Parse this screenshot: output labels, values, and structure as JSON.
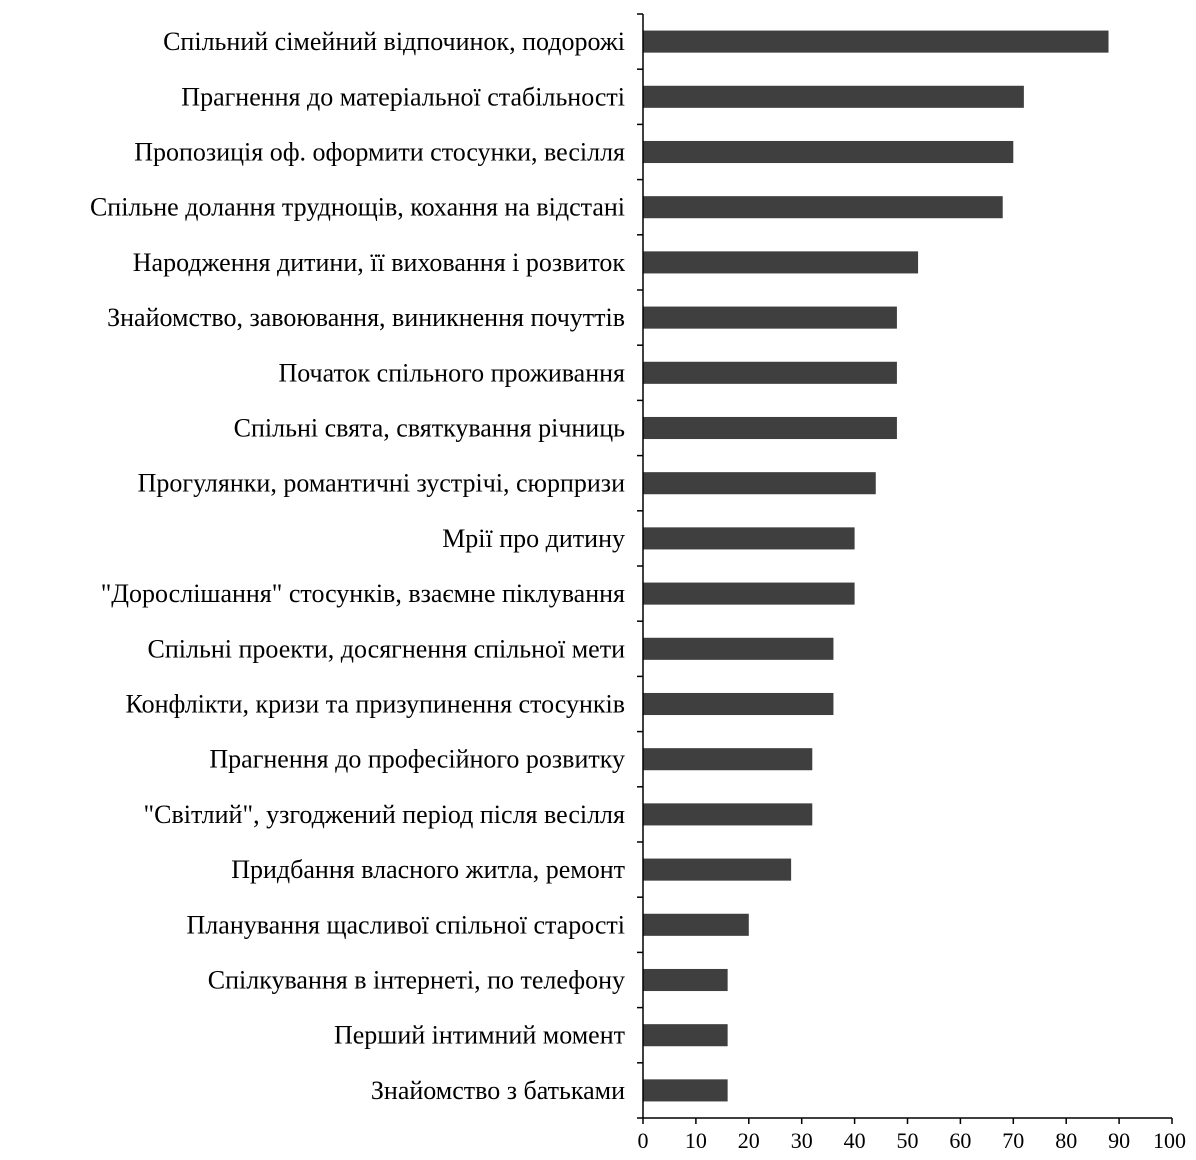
{
  "chart_data": {
    "type": "bar",
    "orientation": "horizontal",
    "categories": [
      "Спільний сімейний відпочинок, подорожі",
      "Прагнення до матеріальної стабільності",
      "Пропозиція оф. оформити стосунки, весілля",
      "Спільне долання труднощів, кохання на відстані",
      "Народження дитини, її виховання і розвиток",
      "Знайомство, завоювання, виникнення почуттів",
      "Початок спільного проживання",
      "Спільні свята, святкування річниць",
      "Прогулянки, романтичні зустрічі, сюрпризи",
      "Мрії про дитину",
      "\"Дорослішання\" стосунків, взаємне піклування",
      "Спільні проекти, досягнення спільної мети",
      "Конфлікти, кризи та призупинення стосунків",
      "Прагнення до професійного розвитку",
      "\"Світлий\", узгоджений період після весілля",
      "Придбання власного житла, ремонт",
      "Планування щасливої спільної старості",
      "Спілкування в інтернеті, по телефону",
      "Перший інтимний момент",
      "Знайомство з батьками"
    ],
    "values": [
      88,
      72,
      70,
      68,
      52,
      48,
      48,
      48,
      44,
      40,
      40,
      36,
      36,
      32,
      32,
      28,
      20,
      16,
      16,
      16
    ],
    "xlim": [
      0,
      100
    ],
    "xticks": [
      "0",
      "10",
      "20",
      "30",
      "40",
      "50",
      "60",
      "70",
      "80",
      "90",
      "100"
    ],
    "title": "",
    "xlabel": "",
    "ylabel": "",
    "grid": false,
    "bar_color": "#3f3f3f"
  }
}
